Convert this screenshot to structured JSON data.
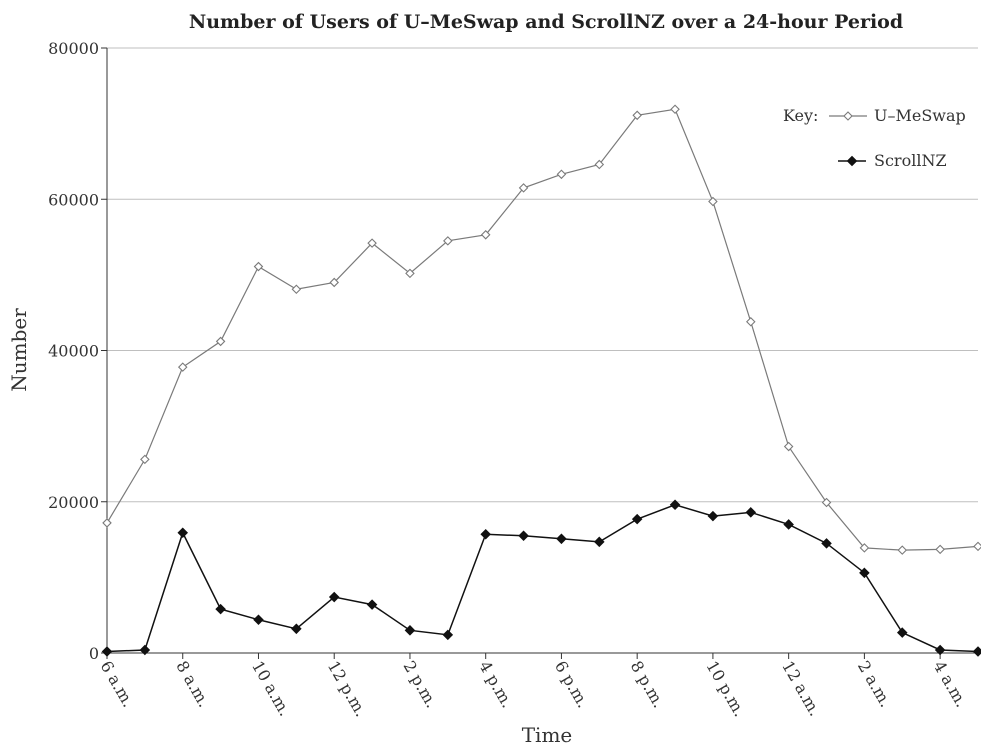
{
  "chart_data": {
    "type": "line",
    "title": "Number of Users of U–MeSwap and ScrollNZ over a 24-hour Period",
    "xlabel": "Time",
    "ylabel": "Number",
    "ylim": [
      0,
      80000
    ],
    "yticks": [
      0,
      20000,
      40000,
      60000,
      80000
    ],
    "grid": "horizontal",
    "legend_position": "top-right",
    "legend_prefix": "Key:",
    "x_tick_labels": [
      "6 a.m.",
      "8 a.m.",
      "10 a.m.",
      "12 p.m.",
      "2 p.m.",
      "4 p.m.",
      "6 p.m.",
      "8 p.m.",
      "10 p.m.",
      "12 a.m.",
      "2 a.m.",
      "4 a.m."
    ],
    "x_points": 24,
    "series": [
      {
        "name": "U–MeSwap",
        "marker": "hollow-diamond",
        "color": "#7a7a7a",
        "values": [
          17200,
          25600,
          37800,
          41200,
          51100,
          48100,
          49000,
          54200,
          50200,
          54500,
          55300,
          61500,
          63300,
          64600,
          71100,
          71900,
          59700,
          43800,
          27300,
          19900,
          13900,
          13600,
          13700,
          14100
        ]
      },
      {
        "name": "ScrollNZ",
        "marker": "filled-diamond",
        "color": "#111111",
        "values": [
          200,
          400,
          15900,
          5800,
          4400,
          3200,
          7400,
          6400,
          3000,
          2400,
          15700,
          15500,
          15100,
          14700,
          17700,
          19600,
          18100,
          18600,
          17000,
          14500,
          10600,
          2700,
          400,
          200
        ]
      }
    ]
  }
}
